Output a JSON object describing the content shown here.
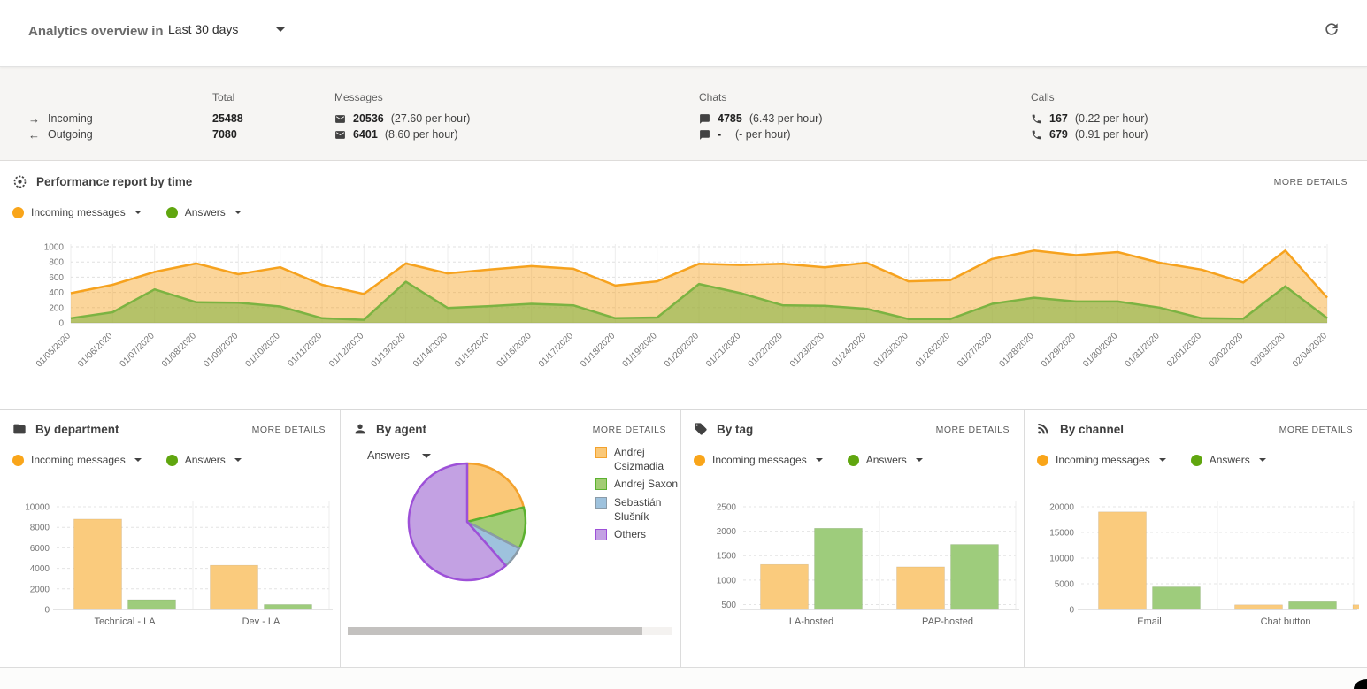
{
  "header": {
    "title": "Analytics overview in",
    "range": "Last 30 days"
  },
  "more_details": "MORE DETAILS",
  "legend": {
    "incoming": "Incoming messages",
    "answers": "Answers"
  },
  "colors": {
    "incoming_line": "#F6A21E",
    "answers_line": "#7CB342",
    "incoming_dot": "#F9A51A",
    "answers_dot": "#60A60F",
    "bar_orange": "#FACB7D",
    "bar_green": "#9ECC7C"
  },
  "stats": {
    "incoming_label": "Incoming",
    "outgoing_label": "Outgoing",
    "total": {
      "header": "Total",
      "incoming": "25488",
      "outgoing": "7080"
    },
    "messages": {
      "header": "Messages",
      "incoming": "20536",
      "incoming_rate": "(27.60 per hour)",
      "outgoing": "6401",
      "outgoing_rate": "(8.60 per hour)"
    },
    "chats": {
      "header": "Chats",
      "incoming": "4785",
      "incoming_rate": "(6.43 per hour)",
      "outgoing": "-",
      "outgoing_rate": "(- per hour)"
    },
    "calls": {
      "header": "Calls",
      "incoming": "167",
      "incoming_rate": "(0.22 per hour)",
      "outgoing": "679",
      "outgoing_rate": "(0.91 per hour)"
    }
  },
  "chart_data": [
    {
      "type": "area",
      "title": "Performance report by time",
      "x": [
        "01/05/2020",
        "01/06/2020",
        "01/07/2020",
        "01/08/2020",
        "01/09/2020",
        "01/10/2020",
        "01/11/2020",
        "01/12/2020",
        "01/13/2020",
        "01/14/2020",
        "01/15/2020",
        "01/16/2020",
        "01/17/2020",
        "01/18/2020",
        "01/19/2020",
        "01/20/2020",
        "01/21/2020",
        "01/22/2020",
        "01/23/2020",
        "01/24/2020",
        "01/25/2020",
        "01/26/2020",
        "01/27/2020",
        "01/28/2020",
        "01/29/2020",
        "01/30/2020",
        "01/31/2020",
        "02/01/2020",
        "02/02/2020",
        "02/03/2020",
        "02/04/2020"
      ],
      "ylim": [
        0,
        1000
      ],
      "yticks": [
        0,
        200,
        400,
        600,
        800,
        1000
      ],
      "grid": true,
      "series": [
        {
          "name": "Incoming messages",
          "color": "#F6A21E",
          "fill": "rgba(246,162,30,0.45)",
          "values": [
            390,
            500,
            670,
            780,
            640,
            730,
            500,
            380,
            780,
            650,
            700,
            745,
            710,
            490,
            545,
            775,
            760,
            775,
            730,
            790,
            545,
            560,
            840,
            950,
            890,
            930,
            790,
            700,
            530,
            950,
            330
          ]
        },
        {
          "name": "Answers",
          "color": "#7CB342",
          "fill": "rgba(124,179,66,0.55)",
          "values": [
            60,
            140,
            440,
            270,
            265,
            215,
            60,
            40,
            540,
            195,
            220,
            250,
            230,
            60,
            70,
            510,
            390,
            230,
            225,
            185,
            50,
            50,
            250,
            330,
            280,
            280,
            200,
            60,
            55,
            480,
            60
          ]
        }
      ]
    },
    {
      "type": "bar",
      "title": "By department",
      "categories": [
        "Technical - LA",
        "Dev - LA"
      ],
      "ymin": 0,
      "yticks": [
        0,
        2000,
        4000,
        6000,
        8000,
        10000
      ],
      "series": [
        {
          "name": "Incoming messages",
          "color": "#FACB7D",
          "values": [
            8800,
            4300
          ]
        },
        {
          "name": "Answers",
          "color": "#9ECC7C",
          "values": [
            950,
            480
          ]
        }
      ]
    },
    {
      "type": "pie",
      "title": "By agent",
      "metric": "Answers",
      "slices": [
        {
          "label": "Andrej Csizmadia",
          "pct": 21,
          "fill": "#FAC878",
          "stroke": "#F3A22D"
        },
        {
          "label": "Andrej Saxon",
          "pct": 11.5,
          "fill": "#A2CC74",
          "stroke": "#5BB12F"
        },
        {
          "label": "Sebastián Slušník",
          "pct": 6,
          "fill": "#9EC2DD",
          "stroke": "#8A9BA8"
        },
        {
          "label": "Others",
          "pct": 61.5,
          "fill": "#C3A1E3",
          "stroke": "#9D50D8"
        }
      ]
    },
    {
      "type": "bar",
      "title": "By tag",
      "categories": [
        "LA-hosted",
        "PAP-hosted"
      ],
      "ymin": 400,
      "yticks": [
        500,
        1000,
        1500,
        2000,
        2500
      ],
      "series": [
        {
          "name": "Incoming messages",
          "color": "#FACB7D",
          "values": [
            1320,
            1270
          ]
        },
        {
          "name": "Answers",
          "color": "#9ECC7C",
          "values": [
            2060,
            1730
          ]
        }
      ]
    },
    {
      "type": "bar",
      "title": "By channel",
      "categories": [
        "Email",
        "Chat button"
      ],
      "ymin": 0,
      "yticks": [
        0,
        5000,
        10000,
        15000,
        20000
      ],
      "series": [
        {
          "name": "Incoming messages",
          "color": "#FACB7D",
          "values": [
            19000,
            900
          ]
        },
        {
          "name": "Answers",
          "color": "#9ECC7C",
          "values": [
            4400,
            1500
          ]
        }
      ],
      "clipped_next": {
        "series": 0,
        "value": 900
      }
    }
  ]
}
